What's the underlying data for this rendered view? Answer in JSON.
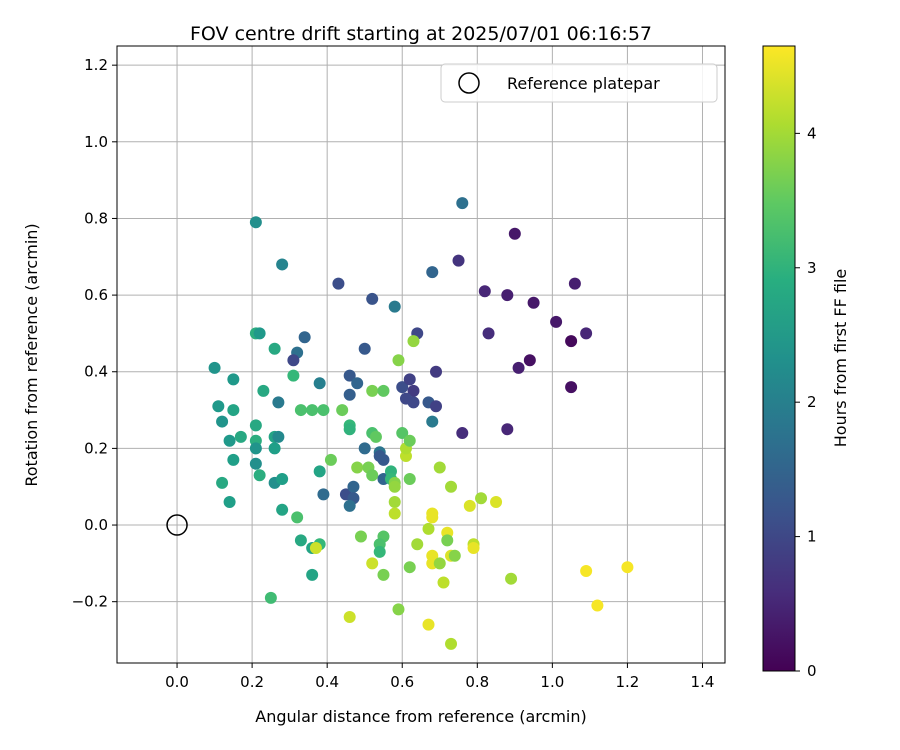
{
  "chart_data": {
    "type": "scatter",
    "title": "FOV centre drift starting at 2025/07/01 06:16:57",
    "xlabel": "Angular distance from reference (arcmin)",
    "ylabel": "Rotation from reference (arcmin)",
    "xlim": [
      -0.16,
      1.46
    ],
    "ylim": [
      -0.36,
      1.25
    ],
    "xticks": [
      "0.0",
      "0.2",
      "0.4",
      "0.6",
      "0.8",
      "1.0",
      "1.2",
      "1.4"
    ],
    "xtick_values": [
      0.0,
      0.2,
      0.4,
      0.6,
      0.8,
      1.0,
      1.2,
      1.4
    ],
    "yticks": [
      "−0.2",
      "0.0",
      "0.2",
      "0.4",
      "0.6",
      "0.8",
      "1.0",
      "1.2"
    ],
    "ytick_values": [
      -0.2,
      0.0,
      0.2,
      0.4,
      0.6,
      0.8,
      1.0,
      1.2
    ],
    "grid": true,
    "legend": {
      "position": "top-right",
      "label": "Reference platepar"
    },
    "reference_point": {
      "x": 0.0,
      "y": 0.0,
      "marker": "hollow-circle"
    },
    "colorbar": {
      "label": "Hours from first FF file",
      "colormap": "viridis",
      "range": [
        0,
        4.65
      ],
      "ticks": [
        "0",
        "1",
        "2",
        "3",
        "4"
      ],
      "tick_values": [
        0,
        1,
        2,
        3,
        4
      ]
    },
    "points": [
      [
        0.76,
        0.84,
        1.7
      ],
      [
        0.21,
        0.79,
        2.3
      ],
      [
        0.28,
        0.68,
        2.1
      ],
      [
        0.68,
        0.66,
        1.5
      ],
      [
        0.9,
        0.76,
        0.3
      ],
      [
        0.75,
        0.69,
        0.7
      ],
      [
        0.43,
        0.63,
        1.1
      ],
      [
        0.52,
        0.59,
        1.2
      ],
      [
        0.58,
        0.57,
        1.9
      ],
      [
        0.82,
        0.61,
        0.5
      ],
      [
        0.88,
        0.6,
        0.4
      ],
      [
        0.95,
        0.58,
        0.3
      ],
      [
        1.06,
        0.63,
        0.4
      ],
      [
        1.01,
        0.53,
        0.3
      ],
      [
        1.09,
        0.5,
        0.5
      ],
      [
        0.83,
        0.5,
        0.6
      ],
      [
        0.94,
        0.43,
        0.2
      ],
      [
        0.91,
        0.41,
        0.4
      ],
      [
        1.05,
        0.48,
        0.1
      ],
      [
        1.05,
        0.36,
        0.2
      ],
      [
        0.88,
        0.25,
        0.5
      ],
      [
        0.76,
        0.24,
        0.6
      ],
      [
        0.69,
        0.4,
        0.8
      ],
      [
        0.64,
        0.5,
        1.0
      ],
      [
        0.63,
        0.35,
        0.8
      ],
      [
        0.61,
        0.33,
        1.0
      ],
      [
        0.6,
        0.36,
        1.1
      ],
      [
        0.62,
        0.38,
        0.9
      ],
      [
        0.67,
        0.32,
        1.3
      ],
      [
        0.69,
        0.31,
        0.9
      ],
      [
        0.68,
        0.27,
        1.9
      ],
      [
        0.63,
        0.32,
        1.0
      ],
      [
        0.5,
        0.46,
        1.3
      ],
      [
        0.46,
        0.39,
        1.3
      ],
      [
        0.48,
        0.37,
        1.5
      ],
      [
        0.46,
        0.34,
        1.4
      ],
      [
        0.34,
        0.49,
        1.5
      ],
      [
        0.32,
        0.45,
        1.7
      ],
      [
        0.31,
        0.43,
        1.0
      ],
      [
        0.38,
        0.37,
        2.0
      ],
      [
        0.27,
        0.32,
        1.9
      ],
      [
        0.23,
        0.35,
        2.8
      ],
      [
        0.21,
        0.5,
        2.9
      ],
      [
        0.26,
        0.46,
        2.8
      ],
      [
        0.22,
        0.5,
        2.5
      ],
      [
        0.1,
        0.41,
        2.4
      ],
      [
        0.11,
        0.31,
        2.5
      ],
      [
        0.15,
        0.38,
        2.5
      ],
      [
        0.15,
        0.3,
        2.7
      ],
      [
        0.12,
        0.27,
        2.4
      ],
      [
        0.14,
        0.22,
        2.5
      ],
      [
        0.17,
        0.23,
        2.8
      ],
      [
        0.21,
        0.26,
        2.8
      ],
      [
        0.21,
        0.22,
        2.9
      ],
      [
        0.21,
        0.2,
        2.4
      ],
      [
        0.26,
        0.23,
        2.7
      ],
      [
        0.27,
        0.23,
        2.2
      ],
      [
        0.26,
        0.2,
        2.6
      ],
      [
        0.21,
        0.16,
        2.3
      ],
      [
        0.15,
        0.17,
        2.6
      ],
      [
        0.22,
        0.13,
        2.9
      ],
      [
        0.12,
        0.11,
        2.8
      ],
      [
        0.14,
        0.06,
        2.6
      ],
      [
        0.26,
        0.11,
        2.3
      ],
      [
        0.28,
        0.12,
        2.6
      ],
      [
        0.28,
        0.04,
        2.7
      ],
      [
        0.31,
        0.39,
        3.1
      ],
      [
        0.33,
        0.3,
        3.3
      ],
      [
        0.36,
        0.3,
        3.3
      ],
      [
        0.39,
        0.3,
        3.3
      ],
      [
        0.41,
        0.17,
        3.6
      ],
      [
        0.38,
        0.14,
        2.7
      ],
      [
        0.39,
        0.08,
        1.6
      ],
      [
        0.32,
        0.02,
        3.3
      ],
      [
        0.33,
        -0.04,
        2.8
      ],
      [
        0.36,
        -0.06,
        2.7
      ],
      [
        0.38,
        -0.05,
        3.1
      ],
      [
        0.37,
        -0.06,
        4.3
      ],
      [
        0.36,
        -0.13,
        2.7
      ],
      [
        0.25,
        -0.19,
        3.2
      ],
      [
        0.44,
        0.3,
        3.6
      ],
      [
        0.46,
        0.26,
        3.1
      ],
      [
        0.46,
        0.25,
        3.0
      ],
      [
        0.52,
        0.35,
        3.7
      ],
      [
        0.55,
        0.35,
        3.5
      ],
      [
        0.52,
        0.24,
        3.3
      ],
      [
        0.53,
        0.23,
        3.5
      ],
      [
        0.5,
        0.2,
        1.6
      ],
      [
        0.48,
        0.15,
        3.8
      ],
      [
        0.51,
        0.15,
        3.7
      ],
      [
        0.54,
        0.19,
        1.8
      ],
      [
        0.55,
        0.17,
        1.3
      ],
      [
        0.54,
        0.18,
        1.3
      ],
      [
        0.45,
        0.08,
        1.1
      ],
      [
        0.47,
        0.1,
        1.5
      ],
      [
        0.47,
        0.07,
        1.3
      ],
      [
        0.46,
        0.05,
        1.7
      ],
      [
        0.52,
        0.13,
        3.6
      ],
      [
        0.55,
        0.12,
        1.5
      ],
      [
        0.57,
        0.14,
        3.0
      ],
      [
        0.57,
        0.12,
        3.1
      ],
      [
        0.58,
        0.11,
        3.8
      ],
      [
        0.58,
        0.1,
        3.9
      ],
      [
        0.58,
        0.06,
        4.0
      ],
      [
        0.58,
        0.03,
        4.2
      ],
      [
        0.59,
        0.43,
        3.8
      ],
      [
        0.6,
        0.24,
        3.4
      ],
      [
        0.61,
        0.18,
        4.2
      ],
      [
        0.61,
        0.2,
        4.1
      ],
      [
        0.62,
        0.22,
        3.6
      ],
      [
        0.62,
        0.12,
        3.6
      ],
      [
        0.63,
        0.48,
        3.9
      ],
      [
        0.7,
        0.15,
        4.0
      ],
      [
        0.73,
        0.1,
        4.0
      ],
      [
        0.78,
        0.05,
        4.4
      ],
      [
        0.81,
        0.07,
        4.0
      ],
      [
        0.85,
        0.06,
        4.4
      ],
      [
        0.67,
        -0.01,
        4.1
      ],
      [
        0.68,
        0.02,
        4.5
      ],
      [
        0.68,
        0.03,
        4.5
      ],
      [
        0.72,
        -0.02,
        4.5
      ],
      [
        0.72,
        -0.04,
        3.7
      ],
      [
        0.79,
        -0.05,
        4.2
      ],
      [
        0.79,
        -0.06,
        4.5
      ],
      [
        0.73,
        -0.08,
        4.4
      ],
      [
        0.74,
        -0.08,
        3.8
      ],
      [
        0.68,
        -0.08,
        4.5
      ],
      [
        0.68,
        -0.1,
        4.5
      ],
      [
        0.7,
        -0.1,
        3.9
      ],
      [
        0.62,
        -0.11,
        3.7
      ],
      [
        0.64,
        -0.05,
        4.0
      ],
      [
        0.55,
        -0.03,
        3.4
      ],
      [
        0.54,
        -0.05,
        3.3
      ],
      [
        0.54,
        -0.07,
        3.1
      ],
      [
        0.49,
        -0.03,
        3.7
      ],
      [
        0.52,
        -0.1,
        4.3
      ],
      [
        0.55,
        -0.13,
        3.7
      ],
      [
        0.71,
        -0.15,
        4.2
      ],
      [
        0.89,
        -0.14,
        4.0
      ],
      [
        0.59,
        -0.22,
        3.8
      ],
      [
        0.46,
        -0.24,
        4.3
      ],
      [
        0.67,
        -0.26,
        4.5
      ],
      [
        0.73,
        -0.31,
        4.1
      ],
      [
        1.09,
        -0.12,
        4.6
      ],
      [
        1.12,
        -0.21,
        4.6
      ],
      [
        1.2,
        -0.11,
        4.6
      ]
    ]
  }
}
